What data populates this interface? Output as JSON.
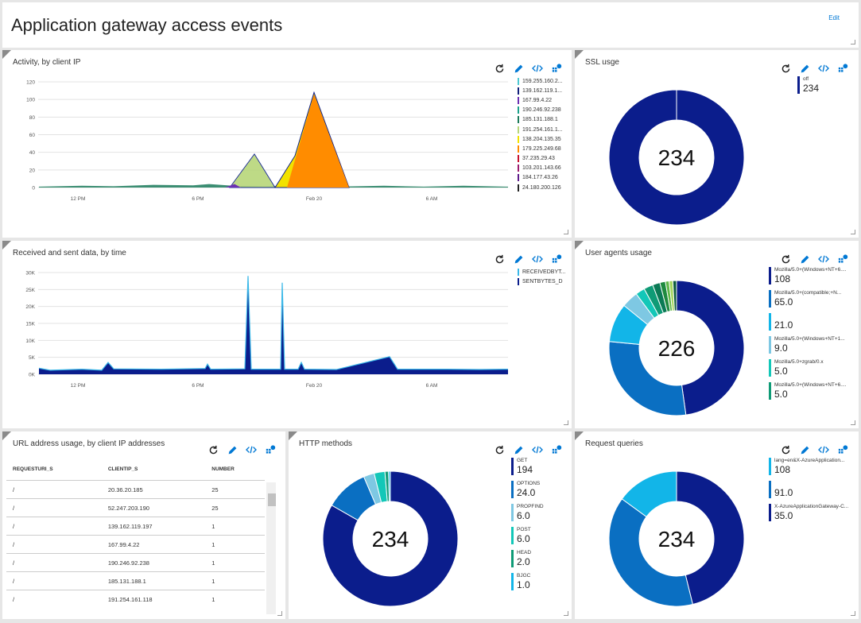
{
  "header": {
    "title": "Application gateway access events",
    "edit_label": "Edit"
  },
  "tiles": {
    "activity": {
      "title": "Activity, by client IP",
      "y_ticks": [
        "120",
        "100",
        "80",
        "60",
        "40",
        "20",
        "0"
      ],
      "x_ticks": [
        "12 PM",
        "6 PM",
        "Feb 20",
        "6 AM"
      ],
      "legend": [
        {
          "label": "159.255.160.2...",
          "color": "#4ec9d2"
        },
        {
          "label": "139.162.119.1...",
          "color": "#101e7a"
        },
        {
          "label": "167.99.4.22",
          "color": "#6b2fb3"
        },
        {
          "label": "190.246.92.238",
          "color": "#1aa18a"
        },
        {
          "label": "185.131.188.1",
          "color": "#1a7a5a"
        },
        {
          "label": "191.254.161.1...",
          "color": "#b7d67a"
        },
        {
          "label": "138.204.135.35",
          "color": "#f2e200"
        },
        {
          "label": "179.225.249.68",
          "color": "#ff8c00"
        },
        {
          "label": "37.235.29.43",
          "color": "#c8102e"
        },
        {
          "label": "103.201.143.66",
          "color": "#9b1b6e"
        },
        {
          "label": "184.177.43.26",
          "color": "#5d1a8a"
        },
        {
          "label": "24.180.200.126",
          "color": "#232323"
        }
      ]
    },
    "ssl": {
      "title": "SSL usge",
      "center": "234",
      "legend": [
        {
          "label": "off",
          "value": "234",
          "color": "#0b1d8c"
        }
      ]
    },
    "received": {
      "title": "Received and sent data, by time",
      "y_ticks": [
        "30K",
        "25K",
        "20K",
        "15K",
        "10K",
        "5K",
        "0K"
      ],
      "x_ticks": [
        "12 PM",
        "6 PM",
        "Feb 20",
        "6 AM"
      ],
      "legend": [
        {
          "label": "RECEIVEDBYT...",
          "color": "#3ab8e8"
        },
        {
          "label": "SENTBYTES_D",
          "color": "#0b1d8c"
        }
      ]
    },
    "useragents": {
      "title": "User agents usage",
      "center": "226",
      "legend": [
        {
          "label": "Mozilla/5.0+(Windows+NT+6....",
          "value": "108",
          "color": "#0b1d8c"
        },
        {
          "label": "Mozilla/5.0+(compatible;+N...",
          "value": "65.0",
          "color": "#0a6fc2"
        },
        {
          "label": "",
          "value": "21.0",
          "color": "#12b5e8"
        },
        {
          "label": "Mozilla/5.0+(Windows+NT+1...",
          "value": "9.0",
          "color": "#7ec8e3"
        },
        {
          "label": "Mozilla/5.0+zgrab/0.x",
          "value": "5.0",
          "color": "#13c7b8"
        },
        {
          "label": "Mozilla/5.0+(Windows+NT+6....",
          "value": "5.0",
          "color": "#0f9b76"
        }
      ],
      "extra_slices": [
        {
          "value": 4,
          "color": "#0b7a55"
        },
        {
          "value": 3,
          "color": "#1f8a3f"
        },
        {
          "value": 2,
          "color": "#5fb848"
        },
        {
          "value": 2,
          "color": "#a4d65e"
        },
        {
          "value": 2,
          "color": "#0d5c3d"
        }
      ]
    },
    "url": {
      "title": "URL address usage, by client IP addresses",
      "columns": [
        "REQUESTURI_S",
        "CLIENTIP_S",
        "NUMBER"
      ],
      "rows": [
        [
          "/",
          "20.36.20.185",
          "25"
        ],
        [
          "/",
          "52.247.203.190",
          "25"
        ],
        [
          "/",
          "139.162.119.197",
          "1"
        ],
        [
          "/",
          "167.99.4.22",
          "1"
        ],
        [
          "/",
          "190.246.92.238",
          "1"
        ],
        [
          "/",
          "185.131.188.1",
          "1"
        ],
        [
          "/",
          "191.254.161.118",
          "1"
        ]
      ]
    },
    "http": {
      "title": "HTTP methods",
      "center": "234",
      "legend": [
        {
          "label": "GET",
          "value": "194",
          "color": "#0b1d8c"
        },
        {
          "label": "OPTIONS",
          "value": "24.0",
          "color": "#0a6fc2"
        },
        {
          "label": "PROPFIND",
          "value": "6.0",
          "color": "#7ec8e3"
        },
        {
          "label": "POST",
          "value": "6.0",
          "color": "#13c7b8"
        },
        {
          "label": "HEAD",
          "value": "2.0",
          "color": "#0f9b76"
        },
        {
          "label": "BJGC",
          "value": "1.0",
          "color": "#12b5e8"
        }
      ]
    },
    "queries": {
      "title": "Request queries",
      "center": "234",
      "legend": [
        {
          "label": "lang=en&X-AzureApplication...",
          "value": "108",
          "color": "#12b5e8"
        },
        {
          "label": "",
          "value": "91.0",
          "color": "#0a6fc2"
        },
        {
          "label": "X-AzureApplicationGateway-C...",
          "value": "35.0",
          "color": "#0b1d8c"
        }
      ]
    }
  }
}
